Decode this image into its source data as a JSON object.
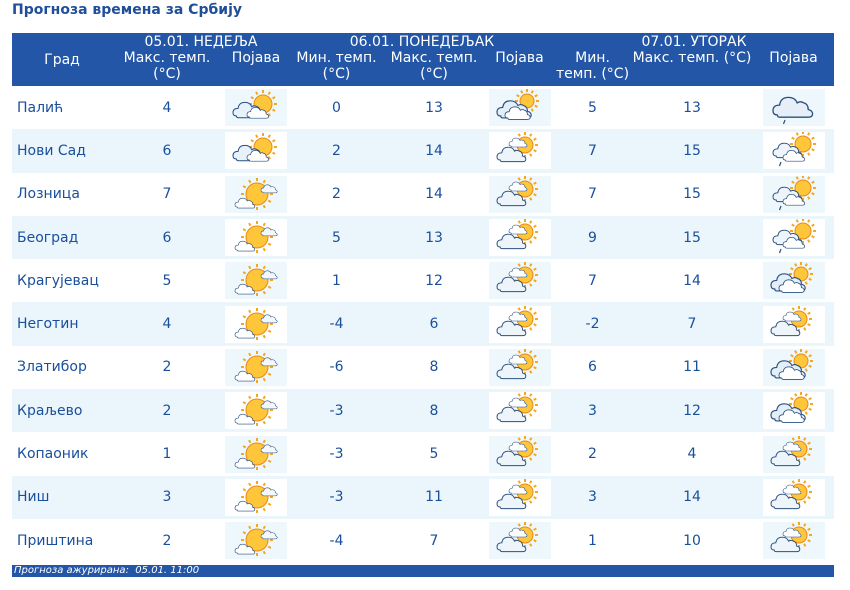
{
  "page_title": "Прогноза времена за Србију",
  "table": {
    "city_header": "Град",
    "days": [
      {
        "date_label": "05.01. НЕДЕЉА",
        "max_label": "Макс. темп. (°C)",
        "icon_label": "Појава"
      },
      {
        "date_label": "06.01. ПОНЕДЕЉАК",
        "min_label": "Мин. темп. (°C)",
        "max_label": "Макс. темп. (°C)",
        "icon_label": "Појава"
      },
      {
        "date_label": "07.01. УТОРАК",
        "min_label": "Мин. темп. (°C)",
        "max_label": "Макс. темп. (°C)",
        "icon_label": "Појава"
      }
    ],
    "rows": [
      {
        "city": "Палић",
        "d1_max": "4",
        "d1_icon": "partly-sunny-icon",
        "d2_min": "0",
        "d2_max": "13",
        "d2_icon": "mostly-cloudy-icon",
        "d3_min": "5",
        "d3_max": "13",
        "d3_icon": "light-rain-cloud-icon"
      },
      {
        "city": "Нови Сад",
        "d1_max": "6",
        "d1_icon": "partly-sunny-icon",
        "d2_min": "2",
        "d2_max": "14",
        "d2_icon": "partly-cloudy-icon",
        "d3_min": "7",
        "d3_max": "15",
        "d3_icon": "sun-cloud-rain-icon"
      },
      {
        "city": "Лозница",
        "d1_max": "7",
        "d1_icon": "sunny-small-cloud-icon",
        "d2_min": "2",
        "d2_max": "14",
        "d2_icon": "partly-cloudy-icon",
        "d3_min": "7",
        "d3_max": "15",
        "d3_icon": "sun-cloud-rain-icon"
      },
      {
        "city": "Београд",
        "d1_max": "6",
        "d1_icon": "sunny-small-cloud-icon",
        "d2_min": "5",
        "d2_max": "13",
        "d2_icon": "partly-cloudy-icon",
        "d3_min": "9",
        "d3_max": "15",
        "d3_icon": "sun-cloud-rain-icon"
      },
      {
        "city": "Крагујевац",
        "d1_max": "5",
        "d1_icon": "sunny-small-cloud-icon",
        "d2_min": "1",
        "d2_max": "12",
        "d2_icon": "partly-cloudy-icon",
        "d3_min": "7",
        "d3_max": "14",
        "d3_icon": "mostly-cloudy-icon"
      },
      {
        "city": "Неготин",
        "d1_max": "4",
        "d1_icon": "sunny-small-cloud-icon",
        "d2_min": "-4",
        "d2_max": "6",
        "d2_icon": "partly-cloudy-icon",
        "d3_min": "-2",
        "d3_max": "7",
        "d3_icon": "partly-cloudy-icon"
      },
      {
        "city": "Златибор",
        "d1_max": "2",
        "d1_icon": "sunny-small-cloud-icon",
        "d2_min": "-6",
        "d2_max": "8",
        "d2_icon": "partly-cloudy-icon",
        "d3_min": "6",
        "d3_max": "11",
        "d3_icon": "mostly-cloudy-icon"
      },
      {
        "city": "Краљево",
        "d1_max": "2",
        "d1_icon": "sunny-small-cloud-icon",
        "d2_min": "-3",
        "d2_max": "8",
        "d2_icon": "partly-cloudy-icon",
        "d3_min": "3",
        "d3_max": "12",
        "d3_icon": "mostly-cloudy-icon"
      },
      {
        "city": "Копаоник",
        "d1_max": "1",
        "d1_icon": "sunny-small-cloud-icon",
        "d2_min": "-3",
        "d2_max": "5",
        "d2_icon": "partly-cloudy-icon",
        "d3_min": "2",
        "d3_max": "4",
        "d3_icon": "partly-cloudy-icon"
      },
      {
        "city": "Ниш",
        "d1_max": "3",
        "d1_icon": "sunny-small-cloud-icon",
        "d2_min": "-3",
        "d2_max": "11",
        "d2_icon": "partly-cloudy-icon",
        "d3_min": "3",
        "d3_max": "14",
        "d3_icon": "partly-cloudy-icon"
      },
      {
        "city": "Приштина",
        "d1_max": "2",
        "d1_icon": "sunny-small-cloud-icon",
        "d2_min": "-4",
        "d2_max": "7",
        "d2_icon": "partly-cloudy-icon",
        "d3_min": "1",
        "d3_max": "10",
        "d3_icon": "partly-cloudy-icon"
      }
    ]
  },
  "footer": {
    "label": "Прогноза ажурирана:",
    "value": "05.01. 11:00"
  },
  "colors": {
    "header_bg": "#2356a7",
    "title": "#1f4f9a",
    "text": "#1a4f9c",
    "stripe": "#eaf6fc",
    "sun": "#f4a81e",
    "cloud_stroke": "#2a4f80"
  }
}
